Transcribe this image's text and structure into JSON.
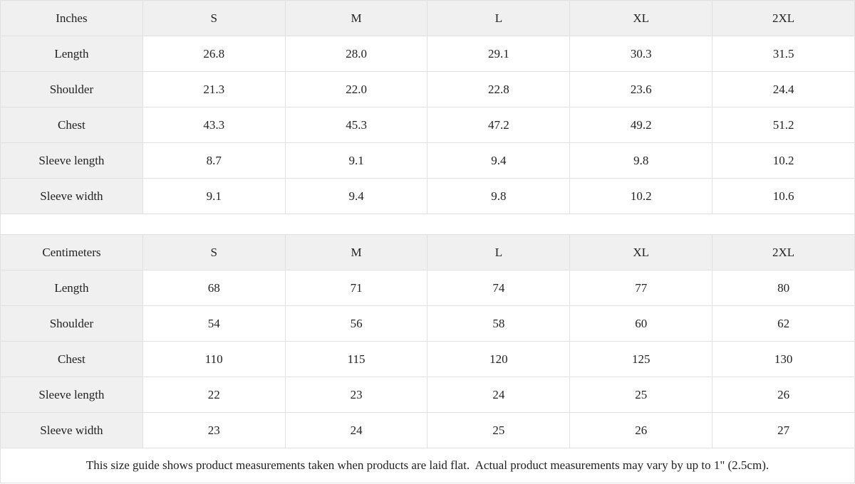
{
  "page": {
    "background": "#ffffff",
    "table_border_color": "#e0e0e0",
    "header_background": "#f0f0f0",
    "text_color": "#222222"
  },
  "size_guide": {
    "tables": [
      {
        "unit_label": "Inches",
        "size_headers": [
          "S",
          "M",
          "L",
          "XL",
          "2XL"
        ],
        "rows": [
          {
            "label": "Length",
            "values": [
              "26.8",
              "28.0",
              "29.1",
              "30.3",
              "31.5"
            ]
          },
          {
            "label": "Shoulder",
            "values": [
              "21.3",
              "22.0",
              "22.8",
              "23.6",
              "24.4"
            ]
          },
          {
            "label": "Chest",
            "values": [
              "43.3",
              "45.3",
              "47.2",
              "49.2",
              "51.2"
            ]
          },
          {
            "label": "Sleeve length",
            "values": [
              "8.7",
              "9.1",
              "9.4",
              "9.8",
              "10.2"
            ]
          },
          {
            "label": "Sleeve width",
            "values": [
              "9.1",
              "9.4",
              "9.8",
              "10.2",
              "10.6"
            ]
          }
        ]
      },
      {
        "unit_label": "Centimeters",
        "size_headers": [
          "S",
          "M",
          "L",
          "XL",
          "2XL"
        ],
        "rows": [
          {
            "label": "Length",
            "values": [
              "68",
              "71",
              "74",
              "77",
              "80"
            ]
          },
          {
            "label": "Shoulder",
            "values": [
              "54",
              "56",
              "58",
              "60",
              "62"
            ]
          },
          {
            "label": "Chest",
            "values": [
              "110",
              "115",
              "120",
              "125",
              "130"
            ]
          },
          {
            "label": "Sleeve length",
            "values": [
              "22",
              "23",
              "24",
              "25",
              "26"
            ]
          },
          {
            "label": "Sleeve width",
            "values": [
              "23",
              "24",
              "25",
              "26",
              "27"
            ]
          }
        ]
      }
    ],
    "footer_note": "This size guide shows product measurements taken when products are laid flat.  Actual product measurements may vary by up to 1\" (2.5cm)."
  }
}
